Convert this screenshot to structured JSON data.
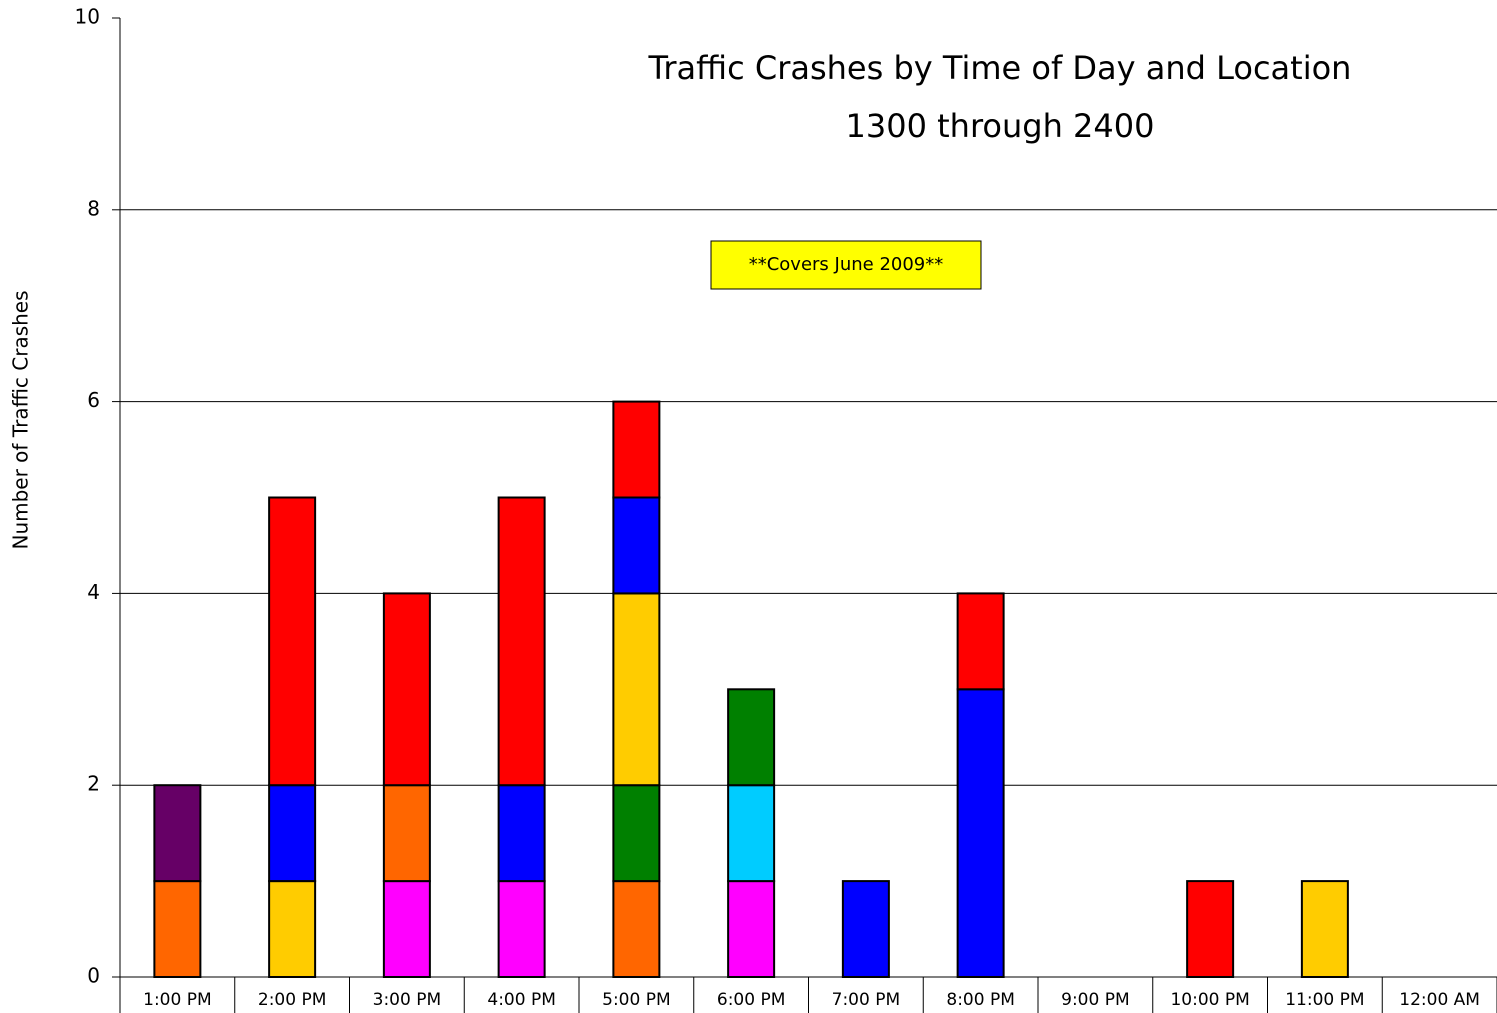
{
  "chart_data": {
    "type": "stacked_bar",
    "title": "Traffic Crashes by Time of Day and Location",
    "subtitle": "1300 through 2400",
    "annotation": "**Covers June 2009**",
    "y_label": "Number of Traffic Crashes",
    "categories": [
      "1:00 PM",
      "2:00 PM",
      "3:00 PM",
      "4:00 PM",
      "5:00 PM",
      "6:00 PM",
      "7:00 PM",
      "8:00 PM",
      "9:00 PM",
      "10:00 PM",
      "11:00 PM",
      "12:00 AM"
    ],
    "series": [
      {
        "color": "#ff00ff",
        "values": [
          null,
          null,
          1,
          1,
          null,
          1,
          null,
          null,
          null,
          null,
          null,
          null
        ]
      },
      {
        "color": "#ff6600",
        "values": [
          1,
          null,
          1,
          null,
          1,
          null,
          null,
          null,
          null,
          null,
          null,
          null
        ]
      },
      {
        "color": "#660066",
        "values": [
          1,
          null,
          null,
          null,
          null,
          null,
          null,
          null,
          null,
          null,
          null,
          null
        ]
      },
      {
        "color": "#00ccff",
        "values": [
          null,
          null,
          null,
          null,
          null,
          1,
          null,
          null,
          null,
          null,
          null,
          null
        ]
      },
      {
        "color": "#008000",
        "values": [
          null,
          null,
          null,
          null,
          1,
          1,
          null,
          null,
          null,
          null,
          null,
          null
        ]
      },
      {
        "color": "#ffcc00",
        "values": [
          null,
          1,
          null,
          null,
          2,
          null,
          null,
          null,
          null,
          null,
          1,
          null
        ]
      },
      {
        "color": "#0000ff",
        "values": [
          null,
          1,
          null,
          1,
          1,
          null,
          1,
          3,
          null,
          null,
          null,
          null
        ]
      },
      {
        "color": "#ff0000",
        "values": [
          null,
          3,
          2,
          3,
          1,
          null,
          null,
          1,
          null,
          1,
          null,
          null
        ]
      }
    ],
    "ylim": [
      0,
      10
    ],
    "yticks": [
      0,
      2,
      4,
      6,
      8,
      10
    ],
    "grid": true
  }
}
